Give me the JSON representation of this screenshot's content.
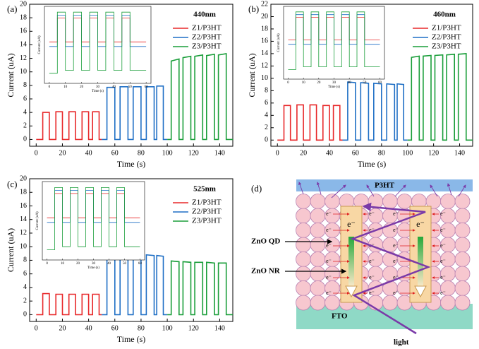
{
  "chart_data": [
    {
      "type": "line",
      "panel": "(a)",
      "annotation": "440nm",
      "xlabel": "Time (s)",
      "ylabel": "Current (uA)",
      "xlim": [
        -5,
        150
      ],
      "xticks": [
        0,
        20,
        40,
        60,
        80,
        100,
        120,
        140
      ],
      "ylim": [
        -1,
        20
      ],
      "yticks": [
        0,
        2,
        4,
        6,
        8,
        10,
        12,
        14,
        16,
        18,
        20
      ],
      "legend": "upper right",
      "series": [
        {
          "name": "Z1/P3HT",
          "color": "#e8282a",
          "x": [
            0,
            5,
            5,
            10,
            10,
            15,
            15,
            20,
            20,
            25,
            25,
            30,
            30,
            35,
            35,
            40,
            40,
            43,
            43,
            48,
            48,
            50
          ],
          "values": [
            0,
            0,
            4,
            4,
            0,
            0,
            4.1,
            4.1,
            0,
            0,
            4.1,
            4.1,
            0,
            0,
            4.1,
            4.1,
            0,
            0,
            4.1,
            4.1,
            0,
            0
          ]
        },
        {
          "name": "Z2/P3HT",
          "color": "#1f6fc5",
          "x": [
            50,
            54,
            54,
            60,
            60,
            64,
            64,
            70,
            70,
            74,
            74,
            80,
            80,
            84,
            84,
            90,
            90,
            92,
            92,
            97,
            97,
            100
          ],
          "values": [
            0,
            0,
            7.7,
            7.7,
            0,
            0,
            7.8,
            7.8,
            0,
            0,
            7.8,
            7.8,
            0,
            0,
            7.8,
            7.8,
            0,
            0,
            7.9,
            7.9,
            0,
            0
          ]
        },
        {
          "name": "Z3/P3HT",
          "color": "#1a9e3a",
          "x": [
            100,
            103,
            103,
            109,
            109,
            112,
            112,
            118,
            118,
            121,
            121,
            127,
            127,
            130,
            130,
            136,
            136,
            139,
            139,
            145,
            145,
            150
          ],
          "values": [
            0,
            0,
            11.6,
            11.9,
            0,
            0,
            12.1,
            12.3,
            0,
            0,
            12.3,
            12.5,
            0,
            0,
            12.4,
            12.6,
            0,
            0,
            12.5,
            12.7,
            0,
            0
          ]
        }
      ],
      "inset": {
        "type": "line",
        "log_y": true,
        "xlabel": "Time (s)",
        "ylabel": "Current (uA)",
        "xlim": [
          -3,
          63
        ],
        "xticks": [
          0,
          10,
          20,
          30,
          40,
          50,
          60
        ],
        "ylim": [
          0.005,
          200
        ],
        "series": [
          {
            "color": "#e8282a",
            "x": [
              0,
              5,
              5,
              10,
              10,
              15,
              15,
              20,
              20,
              25,
              25,
              30,
              30,
              35,
              35,
              40,
              40,
              45,
              45,
              50,
              50,
              60
            ],
            "values": [
              1.5,
              1.5,
              40,
              40,
              1.5,
              1.5,
              40,
              40,
              1.5,
              1.5,
              40,
              40,
              1.5,
              1.5,
              40,
              40,
              1.5,
              1.5,
              40,
              40,
              1.5,
              1.5
            ]
          },
          {
            "color": "#1f6fc5",
            "x": [
              0,
              5,
              5,
              10,
              10,
              15,
              15,
              20,
              20,
              25,
              25,
              30,
              30,
              35,
              35,
              40,
              40,
              45,
              45,
              50,
              50,
              60
            ],
            "values": [
              0.8,
              0.8,
              60,
              60,
              0.8,
              0.8,
              60,
              60,
              0.8,
              0.8,
              60,
              60,
              0.8,
              0.8,
              60,
              60,
              0.8,
              0.8,
              60,
              60,
              0.8,
              0.8
            ]
          },
          {
            "color": "#1a9e3a",
            "x": [
              0,
              5,
              5,
              10,
              10,
              15,
              15,
              20,
              20,
              25,
              25,
              30,
              30,
              35,
              35,
              40,
              40,
              45,
              45,
              50,
              50,
              60
            ],
            "values": [
              0.02,
              0.02,
              90,
              90,
              0.03,
              0.03,
              90,
              90,
              0.03,
              0.03,
              90,
              90,
              0.03,
              0.03,
              90,
              90,
              0.03,
              0.03,
              90,
              90,
              0.03,
              0.03
            ]
          }
        ]
      }
    },
    {
      "type": "line",
      "panel": "(b)",
      "annotation": "460nm",
      "xlabel": "Time (s)",
      "ylabel": "Current (uA)",
      "xlim": [
        -5,
        150
      ],
      "xticks": [
        0,
        20,
        40,
        60,
        80,
        100,
        120,
        140
      ],
      "ylim": [
        -1,
        22
      ],
      "yticks": [
        0,
        2,
        4,
        6,
        8,
        10,
        12,
        14,
        16,
        18,
        20,
        22
      ],
      "legend": "upper right",
      "series": [
        {
          "name": "Z1/P3HT",
          "color": "#e8282a",
          "x": [
            0,
            5,
            5,
            10,
            10,
            15,
            15,
            20,
            20,
            25,
            25,
            30,
            30,
            35,
            35,
            40,
            40,
            43,
            43,
            48,
            48,
            50
          ],
          "values": [
            0,
            0,
            5.6,
            5.6,
            0,
            0,
            5.7,
            5.7,
            0,
            0,
            5.7,
            5.7,
            0,
            0,
            5.6,
            5.6,
            0,
            0,
            5.6,
            5.6,
            0,
            0
          ]
        },
        {
          "name": "Z2/P3HT",
          "color": "#1f6fc5",
          "x": [
            50,
            54,
            54,
            60,
            60,
            64,
            64,
            70,
            70,
            74,
            74,
            80,
            80,
            84,
            84,
            90,
            90,
            92,
            92,
            97,
            97,
            100
          ],
          "values": [
            0,
            0,
            9.4,
            9.3,
            0,
            0,
            9.3,
            9.2,
            0,
            0,
            9.2,
            9.1,
            0,
            0,
            9.1,
            9.0,
            0,
            0,
            9.1,
            9.0,
            0,
            0
          ]
        },
        {
          "name": "Z3/P3HT",
          "color": "#1a9e3a",
          "x": [
            100,
            103,
            103,
            109,
            109,
            112,
            112,
            118,
            118,
            121,
            121,
            127,
            127,
            130,
            130,
            136,
            136,
            139,
            139,
            145,
            145,
            150
          ],
          "values": [
            0,
            0,
            13.4,
            13.6,
            0,
            0,
            13.6,
            13.7,
            0,
            0,
            13.7,
            13.8,
            0,
            0,
            13.8,
            13.9,
            0,
            0,
            13.9,
            14.0,
            0,
            0
          ]
        }
      ],
      "inset": {
        "type": "line",
        "log_y": true,
        "xlabel": "Time (s)",
        "ylabel": "Current (uA)",
        "xlim": [
          -3,
          63
        ],
        "xticks": [
          0,
          10,
          20,
          30,
          40,
          50,
          60
        ],
        "ylim": [
          0.005,
          200
        ],
        "series": [
          {
            "color": "#e8282a",
            "x": [
              0,
              5,
              5,
              10,
              10,
              15,
              15,
              20,
              20,
              25,
              25,
              30,
              30,
              35,
              35,
              40,
              40,
              45,
              45,
              50,
              50,
              60
            ],
            "values": [
              1.5,
              1.5,
              40,
              40,
              1.5,
              1.5,
              40,
              40,
              1.5,
              1.5,
              40,
              40,
              1.5,
              1.5,
              40,
              40,
              1.5,
              1.5,
              40,
              40,
              1.5,
              1.5
            ]
          },
          {
            "color": "#1f6fc5",
            "x": [
              0,
              5,
              5,
              10,
              10,
              15,
              15,
              20,
              20,
              25,
              25,
              30,
              30,
              35,
              35,
              40,
              40,
              45,
              45,
              50,
              50,
              60
            ],
            "values": [
              0.8,
              0.8,
              60,
              60,
              0.8,
              0.8,
              60,
              60,
              0.8,
              0.8,
              60,
              60,
              0.8,
              0.8,
              60,
              60,
              0.8,
              0.8,
              60,
              60,
              0.8,
              0.8
            ]
          },
          {
            "color": "#1a9e3a",
            "x": [
              0,
              5,
              5,
              10,
              10,
              15,
              15,
              20,
              20,
              25,
              25,
              30,
              30,
              35,
              35,
              40,
              40,
              45,
              45,
              50,
              50,
              60
            ],
            "values": [
              0.02,
              0.02,
              90,
              90,
              0.03,
              0.03,
              90,
              90,
              0.03,
              0.03,
              90,
              90,
              0.03,
              0.03,
              90,
              90,
              0.03,
              0.03,
              90,
              90,
              0.03,
              0.03
            ]
          }
        ]
      }
    },
    {
      "type": "line",
      "panel": "(c)",
      "annotation": "525nm",
      "xlabel": "Time (s)",
      "ylabel": "Current (uA)",
      "xlim": [
        -5,
        150
      ],
      "xticks": [
        0,
        20,
        40,
        60,
        80,
        100,
        120,
        140
      ],
      "ylim": [
        -1,
        20
      ],
      "yticks": [
        0,
        2,
        4,
        6,
        8,
        10,
        12,
        14,
        16,
        18,
        20
      ],
      "legend": "upper right",
      "series": [
        {
          "name": "Z1/P3HT",
          "color": "#e8282a",
          "x": [
            0,
            5,
            5,
            10,
            10,
            15,
            15,
            20,
            20,
            25,
            25,
            30,
            30,
            35,
            35,
            40,
            40,
            43,
            43,
            48,
            48,
            50
          ],
          "values": [
            0,
            0,
            3.1,
            3.1,
            0,
            0,
            3.0,
            3.0,
            0,
            0,
            3.0,
            3.0,
            0,
            0,
            3.0,
            3.0,
            0,
            0,
            3.0,
            3.0,
            0,
            0
          ]
        },
        {
          "name": "Z2/P3HT",
          "color": "#1f6fc5",
          "x": [
            50,
            54,
            54,
            60,
            60,
            64,
            64,
            70,
            70,
            74,
            74,
            80,
            80,
            84,
            84,
            90,
            90,
            92,
            92,
            97,
            97,
            100
          ],
          "values": [
            0,
            0,
            9.3,
            9.1,
            0,
            0,
            9.1,
            8.9,
            0,
            0,
            8.9,
            8.8,
            0,
            0,
            8.8,
            8.7,
            0,
            0,
            8.7,
            8.6,
            0,
            0
          ]
        },
        {
          "name": "Z3/P3HT",
          "color": "#1a9e3a",
          "x": [
            100,
            103,
            103,
            109,
            109,
            112,
            112,
            118,
            118,
            121,
            121,
            127,
            127,
            130,
            130,
            136,
            136,
            139,
            139,
            145,
            145,
            150
          ],
          "values": [
            0,
            0,
            7.9,
            7.8,
            0,
            0,
            7.8,
            7.7,
            0,
            0,
            7.7,
            7.7,
            0,
            0,
            7.7,
            7.6,
            0,
            0,
            7.6,
            7.6,
            0,
            0
          ]
        }
      ],
      "inset": {
        "type": "line",
        "log_y": true,
        "xlabel": "Time (s)",
        "ylabel": "Current (uA)",
        "xlim": [
          -3,
          63
        ],
        "xticks": [
          0,
          10,
          20,
          30,
          40,
          50,
          60
        ],
        "ylim": [
          0.005,
          200
        ],
        "series": [
          {
            "color": "#e8282a",
            "x": [
              0,
              5,
              5,
              10,
              10,
              15,
              15,
              20,
              20,
              25,
              25,
              30,
              30,
              35,
              35,
              40,
              40,
              45,
              45,
              50,
              50,
              60
            ],
            "values": [
              1.5,
              1.5,
              40,
              40,
              1.5,
              1.5,
              40,
              40,
              1.5,
              1.5,
              40,
              40,
              1.5,
              1.5,
              40,
              40,
              1.5,
              1.5,
              40,
              40,
              1.5,
              1.5
            ]
          },
          {
            "color": "#1f6fc5",
            "x": [
              0,
              5,
              5,
              10,
              10,
              15,
              15,
              20,
              20,
              25,
              25,
              30,
              30,
              35,
              35,
              40,
              40,
              45,
              45,
              50,
              50,
              60
            ],
            "values": [
              0.8,
              0.8,
              60,
              60,
              0.8,
              0.8,
              60,
              60,
              0.8,
              0.8,
              60,
              60,
              0.8,
              0.8,
              60,
              60,
              0.8,
              0.8,
              60,
              60,
              0.8,
              0.8
            ]
          },
          {
            "color": "#1a9e3a",
            "x": [
              0,
              5,
              5,
              10,
              10,
              15,
              15,
              20,
              20,
              25,
              25,
              30,
              30,
              35,
              35,
              40,
              40,
              45,
              45,
              50,
              50,
              60
            ],
            "values": [
              0.02,
              0.02,
              90,
              90,
              0.03,
              0.03,
              90,
              90,
              0.03,
              0.03,
              90,
              90,
              0.03,
              0.03,
              90,
              90,
              0.03,
              0.03,
              90,
              90,
              0.03,
              0.03
            ]
          }
        ]
      }
    }
  ],
  "diagram": {
    "panel": "(d)",
    "top_layer": "P3HT",
    "bottom_layer": "FTO",
    "labels": [
      "ZnO QD",
      "ZnO NR"
    ],
    "electron": "e⁻",
    "light": "light"
  }
}
